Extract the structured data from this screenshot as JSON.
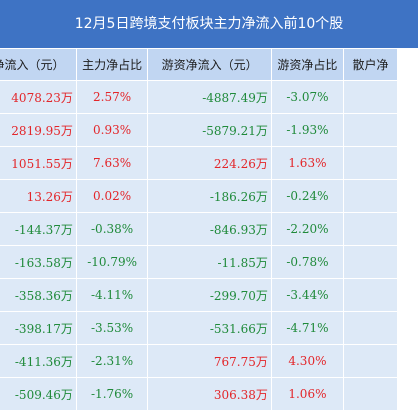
{
  "title": "12月5日跨境支付板块主力净流入前10个股",
  "headers": [
    "净流入（元）",
    "主力净占比",
    "游资净流入（元）",
    "游资净占比",
    "散户净"
  ],
  "rows": [
    {
      "main_in": "4078.23万",
      "main_pct": "2.57%",
      "hot_in": "-4887.49万",
      "hot_pct": "-3.07%"
    },
    {
      "main_in": "2819.95万",
      "main_pct": "0.93%",
      "hot_in": "-5879.21万",
      "hot_pct": "-1.93%"
    },
    {
      "main_in": "1051.55万",
      "main_pct": "7.63%",
      "hot_in": "224.26万",
      "hot_pct": "1.63%"
    },
    {
      "main_in": "13.26万",
      "main_pct": "0.02%",
      "hot_in": "-186.26万",
      "hot_pct": "-0.24%"
    },
    {
      "main_in": "-144.37万",
      "main_pct": "-0.38%",
      "hot_in": "-846.93万",
      "hot_pct": "-2.20%"
    },
    {
      "main_in": "-163.58万",
      "main_pct": "-10.79%",
      "hot_in": "-11.85万",
      "hot_pct": "-0.78%"
    },
    {
      "main_in": "-358.36万",
      "main_pct": "-4.11%",
      "hot_in": "-299.70万",
      "hot_pct": "-3.44%"
    },
    {
      "main_in": "-398.17万",
      "main_pct": "-3.53%",
      "hot_in": "-531.66万",
      "hot_pct": "-4.71%"
    },
    {
      "main_in": "-411.36万",
      "main_pct": "-2.31%",
      "hot_in": "767.75万",
      "hot_pct": "4.30%"
    },
    {
      "main_in": "-509.46万",
      "main_pct": "-1.76%",
      "hot_in": "306.38万",
      "hot_pct": "1.06%"
    }
  ],
  "colors": {
    "positive": "#e3262a",
    "negative": "#1f8a3a",
    "title_bg": "#3e73c4",
    "header_bg": "#c1d6f2",
    "row_bg": "#dde9f7"
  }
}
